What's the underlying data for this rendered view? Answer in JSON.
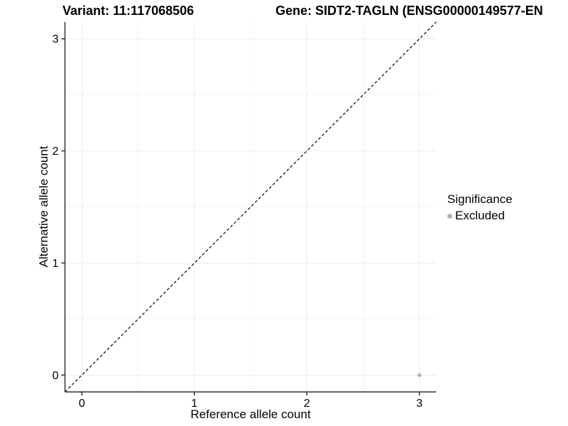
{
  "header": {
    "variant_title": "Variant: 11:117068506",
    "gene_title": "Gene: SIDT2-TAGLN (ENSG00000149577-EN"
  },
  "chart_data": {
    "type": "scatter",
    "title": "Variant: 11:117068506",
    "xlabel": "Reference allele count",
    "ylabel": "Alternative allele count",
    "xlim": [
      -0.15,
      3.15
    ],
    "ylim": [
      -0.15,
      3.15
    ],
    "xticks": [
      0,
      1,
      2,
      3
    ],
    "yticks": [
      0,
      1,
      2,
      3
    ],
    "minor_gridlines": [
      0.5,
      1.5,
      2.5
    ],
    "grid": "major+minor",
    "points": [
      {
        "x": 3,
        "y": 0,
        "significance": "Excluded"
      }
    ],
    "identity_line": {
      "style": "dashed",
      "from": [
        -0.15,
        -0.15
      ],
      "to": [
        3.15,
        3.15
      ]
    },
    "legend": {
      "title": "Significance",
      "position": "right",
      "entries": [
        {
          "label": "Excluded",
          "color": "#b3b3b3"
        }
      ]
    },
    "colors": {
      "point": "#b3b3b3",
      "grid_major": "#ececec",
      "grid_minor": "#f4f4f4",
      "axis_line": "#333333",
      "tick_text": "#000000",
      "background": "#ffffff"
    }
  }
}
